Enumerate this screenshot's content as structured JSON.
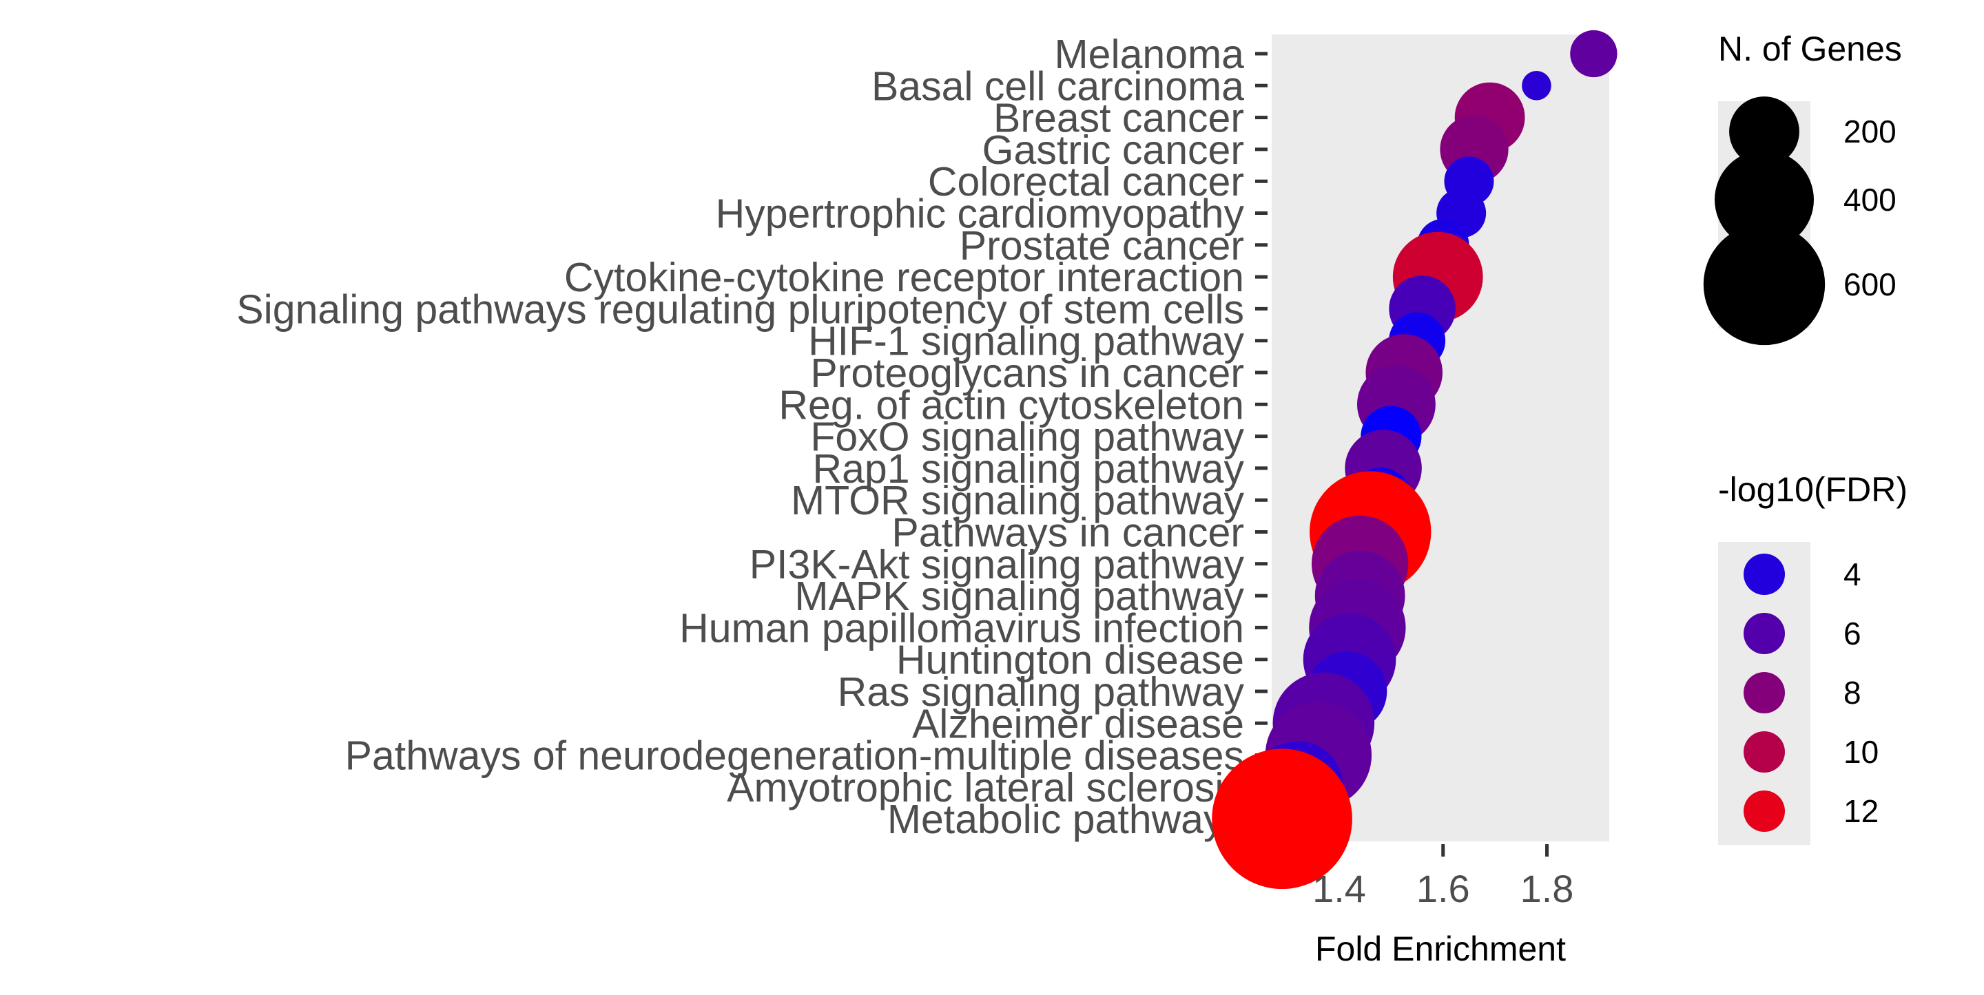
{
  "chart_data": {
    "type": "scatter",
    "title": "",
    "xlabel": "Fold Enrichment",
    "ylabel": "",
    "xlim": [
      1.27,
      1.92
    ],
    "x_ticks": [
      1.4,
      1.6,
      1.8
    ],
    "x_tick_labels": [
      "1.4",
      "1.6",
      "1.8"
    ],
    "grid": false,
    "panel_background": "#ebebeb",
    "legend_placement": "right",
    "categories": [
      "Melanoma",
      "Basal cell carcinoma",
      "Breast cancer",
      "Gastric cancer",
      "Colorectal cancer",
      "Hypertrophic cardiomyopathy",
      "Prostate cancer",
      "Cytokine-cytokine receptor interaction",
      "Signaling pathways regulating pluripotency of stem cells",
      "HIF-1 signaling pathway",
      "Proteoglycans in cancer",
      "Reg. of actin cytoskeleton",
      "FoxO signaling pathway",
      "Rap1 signaling pathway",
      "MTOR signaling pathway",
      "Pathways in cancer",
      "PI3K-Akt signaling pathway",
      "MAPK signaling pathway",
      "Human papillomavirus infection",
      "Huntington disease",
      "Ras signaling pathway",
      "Alzheimer disease",
      "Pathways of neurodegeneration-multiple diseases",
      "Amyotrophic lateral sclerosis",
      "Metabolic pathways"
    ],
    "points": [
      {
        "category": "Melanoma",
        "fold_enrichment": 1.89,
        "n_genes": 90,
        "neg_log10_fdr": 6.5
      },
      {
        "category": "Basal cell carcinoma",
        "fold_enrichment": 1.78,
        "n_genes": 35,
        "neg_log10_fdr": 4.3
      },
      {
        "category": "Breast cancer",
        "fold_enrichment": 1.69,
        "n_genes": 200,
        "neg_log10_fdr": 8.5
      },
      {
        "category": "Gastric cancer",
        "fold_enrichment": 1.66,
        "n_genes": 190,
        "neg_log10_fdr": 8.0
      },
      {
        "category": "Colorectal cancer",
        "fold_enrichment": 1.65,
        "n_genes": 100,
        "neg_log10_fdr": 4.0
      },
      {
        "category": "Hypertrophic cardiomyopathy",
        "fold_enrichment": 1.635,
        "n_genes": 100,
        "neg_log10_fdr": 4.0
      },
      {
        "category": "Prostate cancer",
        "fold_enrichment": 1.6,
        "n_genes": 110,
        "neg_log10_fdr": 3.7
      },
      {
        "category": "Cytokine-cytokine receptor interaction",
        "fold_enrichment": 1.59,
        "n_genes": 330,
        "neg_log10_fdr": 11.0
      },
      {
        "category": "Signaling pathways regulating pluripotency of stem cells",
        "fold_enrichment": 1.56,
        "n_genes": 180,
        "neg_log10_fdr": 5.5
      },
      {
        "category": "HIF-1 signaling pathway",
        "fold_enrichment": 1.55,
        "n_genes": 130,
        "neg_log10_fdr": 3.3
      },
      {
        "category": "Proteoglycans in cancer",
        "fold_enrichment": 1.525,
        "n_genes": 240,
        "neg_log10_fdr": 7.5
      },
      {
        "category": "Reg. of actin cytoskeleton",
        "fold_enrichment": 1.51,
        "n_genes": 250,
        "neg_log10_fdr": 7.0
      },
      {
        "category": "FoxO signaling pathway",
        "fold_enrichment": 1.5,
        "n_genes": 150,
        "neg_log10_fdr": 2.8
      },
      {
        "category": "Rap1 signaling pathway",
        "fold_enrichment": 1.485,
        "n_genes": 240,
        "neg_log10_fdr": 6.5
      },
      {
        "category": "MTOR signaling pathway",
        "fold_enrichment": 1.48,
        "n_genes": 170,
        "neg_log10_fdr": 3.5
      },
      {
        "category": "Pathways in cancer",
        "fold_enrichment": 1.46,
        "n_genes": 600,
        "neg_log10_fdr": 13.0
      },
      {
        "category": "PI3K-Akt signaling pathway",
        "fold_enrichment": 1.44,
        "n_genes": 380,
        "neg_log10_fdr": 7.8
      },
      {
        "category": "MAPK signaling pathway",
        "fold_enrichment": 1.44,
        "n_genes": 330,
        "neg_log10_fdr": 6.8
      },
      {
        "category": "Human papillomavirus infection",
        "fold_enrichment": 1.435,
        "n_genes": 380,
        "neg_log10_fdr": 6.5
      },
      {
        "category": "Huntington disease",
        "fold_enrichment": 1.42,
        "n_genes": 350,
        "neg_log10_fdr": 5.8
      },
      {
        "category": "Ras signaling pathway",
        "fold_enrichment": 1.415,
        "n_genes": 260,
        "neg_log10_fdr": 4.5
      },
      {
        "category": "Alzheimer disease",
        "fold_enrichment": 1.37,
        "n_genes": 420,
        "neg_log10_fdr": 6.2
      },
      {
        "category": "Pathways of neurodegeneration-multiple diseases",
        "fold_enrichment": 1.36,
        "n_genes": 460,
        "neg_log10_fdr": 6.5
      },
      {
        "category": "Amyotrophic lateral sclerosis",
        "fold_enrichment": 1.32,
        "n_genes": 340,
        "neg_log10_fdr": 4.5
      },
      {
        "category": "Metabolic pathways",
        "fold_enrichment": 1.29,
        "n_genes": 800,
        "neg_log10_fdr": 13.0
      }
    ],
    "size_legend": {
      "title": "N. of Genes",
      "values": [
        200,
        400,
        600
      ],
      "labels": [
        "200",
        "400",
        "600"
      ]
    },
    "color_legend": {
      "title": "-log10(FDR)",
      "values": [
        4,
        6,
        8,
        10,
        12
      ],
      "labels": [
        "4",
        "6",
        "8",
        "10",
        "12"
      ],
      "low_color": "#0000ff",
      "high_color": "#ff0000",
      "range": [
        2.6,
        13.0
      ]
    }
  }
}
